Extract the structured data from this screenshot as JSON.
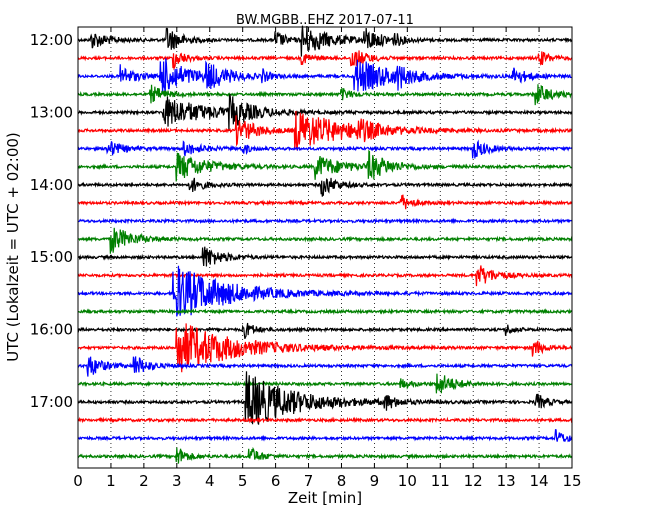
{
  "chart_data": {
    "type": "line",
    "title": "BW.MGBB..EHZ 2017-07-11",
    "xlabel": "Zeit  [min]",
    "ylabel": "UTC (Lokalzeit = UTC + 02:00)",
    "xlim": [
      0,
      15
    ],
    "x_ticks": [
      0,
      1,
      2,
      3,
      4,
      5,
      6,
      7,
      8,
      9,
      10,
      11,
      12,
      13,
      14,
      15
    ],
    "y_ticks": [
      "12:00",
      "13:00",
      "14:00",
      "15:00",
      "16:00",
      "17:00"
    ],
    "grid": "vertical dotted",
    "line_interval_min": 15,
    "line_colors": [
      "#000000",
      "#ff0000",
      "#0000ff",
      "#008000"
    ],
    "series": [
      {
        "start": "12:00",
        "events": [
          {
            "t": 0.4,
            "a": 9,
            "d": 0.5
          },
          {
            "t": 2.7,
            "a": 14,
            "d": 0.4
          },
          {
            "t": 6.0,
            "a": 9,
            "d": 0.3
          },
          {
            "t": 6.8,
            "a": 16,
            "d": 0.8
          },
          {
            "t": 8.7,
            "a": 11,
            "d": 0.5
          },
          {
            "t": 9.6,
            "a": 6,
            "d": 0.2
          }
        ]
      },
      {
        "start": "12:15",
        "events": [
          {
            "t": 2.9,
            "a": 10,
            "d": 0.3
          },
          {
            "t": 6.8,
            "a": 6,
            "d": 0.3
          },
          {
            "t": 8.3,
            "a": 12,
            "d": 0.4
          },
          {
            "t": 14.0,
            "a": 8,
            "d": 0.3
          }
        ]
      },
      {
        "start": "12:30",
        "events": [
          {
            "t": 1.3,
            "a": 11,
            "d": 0.4
          },
          {
            "t": 2.5,
            "a": 20,
            "d": 0.8
          },
          {
            "t": 3.9,
            "a": 12,
            "d": 0.6
          },
          {
            "t": 5.6,
            "a": 6,
            "d": 0.2
          },
          {
            "t": 8.4,
            "a": 18,
            "d": 1.2
          },
          {
            "t": 9.7,
            "a": 8,
            "d": 0.3
          },
          {
            "t": 13.2,
            "a": 9,
            "d": 0.4
          }
        ]
      },
      {
        "start": "12:45",
        "events": [
          {
            "t": 2.2,
            "a": 9,
            "d": 0.4
          },
          {
            "t": 8.0,
            "a": 6,
            "d": 0.3
          },
          {
            "t": 13.9,
            "a": 12,
            "d": 0.4
          }
        ]
      },
      {
        "start": "13:00",
        "events": [
          {
            "t": 2.6,
            "a": 16,
            "d": 1.3
          },
          {
            "t": 4.6,
            "a": 14,
            "d": 0.6
          }
        ]
      },
      {
        "start": "13:15",
        "events": [
          {
            "t": 4.8,
            "a": 14,
            "d": 0.6
          },
          {
            "t": 6.6,
            "a": 20,
            "d": 1.5
          },
          {
            "t": 8.5,
            "a": 8,
            "d": 0.5
          }
        ]
      },
      {
        "start": "13:30",
        "events": [
          {
            "t": 0.9,
            "a": 9,
            "d": 0.4
          },
          {
            "t": 3.2,
            "a": 7,
            "d": 0.5
          },
          {
            "t": 5.0,
            "a": 6,
            "d": 0.2
          },
          {
            "t": 12.0,
            "a": 10,
            "d": 0.4
          }
        ]
      },
      {
        "start": "13:45",
        "events": [
          {
            "t": 3.0,
            "a": 14,
            "d": 0.9
          },
          {
            "t": 7.2,
            "a": 12,
            "d": 0.8
          },
          {
            "t": 8.8,
            "a": 14,
            "d": 0.6
          }
        ]
      },
      {
        "start": "14:00",
        "events": [
          {
            "t": 3.4,
            "a": 8,
            "d": 0.4
          },
          {
            "t": 7.4,
            "a": 12,
            "d": 0.4
          }
        ]
      },
      {
        "start": "14:15",
        "events": [
          {
            "t": 9.8,
            "a": 9,
            "d": 0.3
          }
        ]
      },
      {
        "start": "14:30",
        "events": []
      },
      {
        "start": "14:45",
        "events": [
          {
            "t": 1.0,
            "a": 14,
            "d": 0.6
          }
        ]
      },
      {
        "start": "15:00",
        "events": [
          {
            "t": 3.8,
            "a": 12,
            "d": 0.5
          }
        ]
      },
      {
        "start": "15:15",
        "events": [
          {
            "t": 12.1,
            "a": 12,
            "d": 0.5
          }
        ]
      },
      {
        "start": "15:30",
        "events": [
          {
            "t": 2.9,
            "a": 30,
            "d": 1.5
          }
        ]
      },
      {
        "start": "15:45",
        "events": []
      },
      {
        "start": "16:00",
        "events": [
          {
            "t": 5.0,
            "a": 10,
            "d": 0.3
          },
          {
            "t": 13.0,
            "a": 6,
            "d": 0.2
          }
        ]
      },
      {
        "start": "16:15",
        "events": [
          {
            "t": 3.0,
            "a": 28,
            "d": 1.6
          },
          {
            "t": 13.8,
            "a": 9,
            "d": 0.3
          }
        ]
      },
      {
        "start": "16:30",
        "events": [
          {
            "t": 0.3,
            "a": 12,
            "d": 0.4
          },
          {
            "t": 1.7,
            "a": 11,
            "d": 0.4
          }
        ]
      },
      {
        "start": "16:45",
        "events": [
          {
            "t": 10.9,
            "a": 12,
            "d": 0.5
          },
          {
            "t": 9.8,
            "a": 5,
            "d": 0.3
          }
        ]
      },
      {
        "start": "17:00",
        "events": [
          {
            "t": 5.1,
            "a": 30,
            "d": 1.4
          },
          {
            "t": 9.3,
            "a": 8,
            "d": 0.3
          },
          {
            "t": 13.9,
            "a": 9,
            "d": 0.3
          }
        ]
      },
      {
        "start": "17:15",
        "events": []
      },
      {
        "start": "17:30",
        "events": [
          {
            "t": 14.5,
            "a": 8,
            "d": 0.3
          }
        ]
      },
      {
        "start": "17:45",
        "events": [
          {
            "t": 3.0,
            "a": 10,
            "d": 0.3
          },
          {
            "t": 5.2,
            "a": 10,
            "d": 0.3
          }
        ]
      }
    ]
  }
}
